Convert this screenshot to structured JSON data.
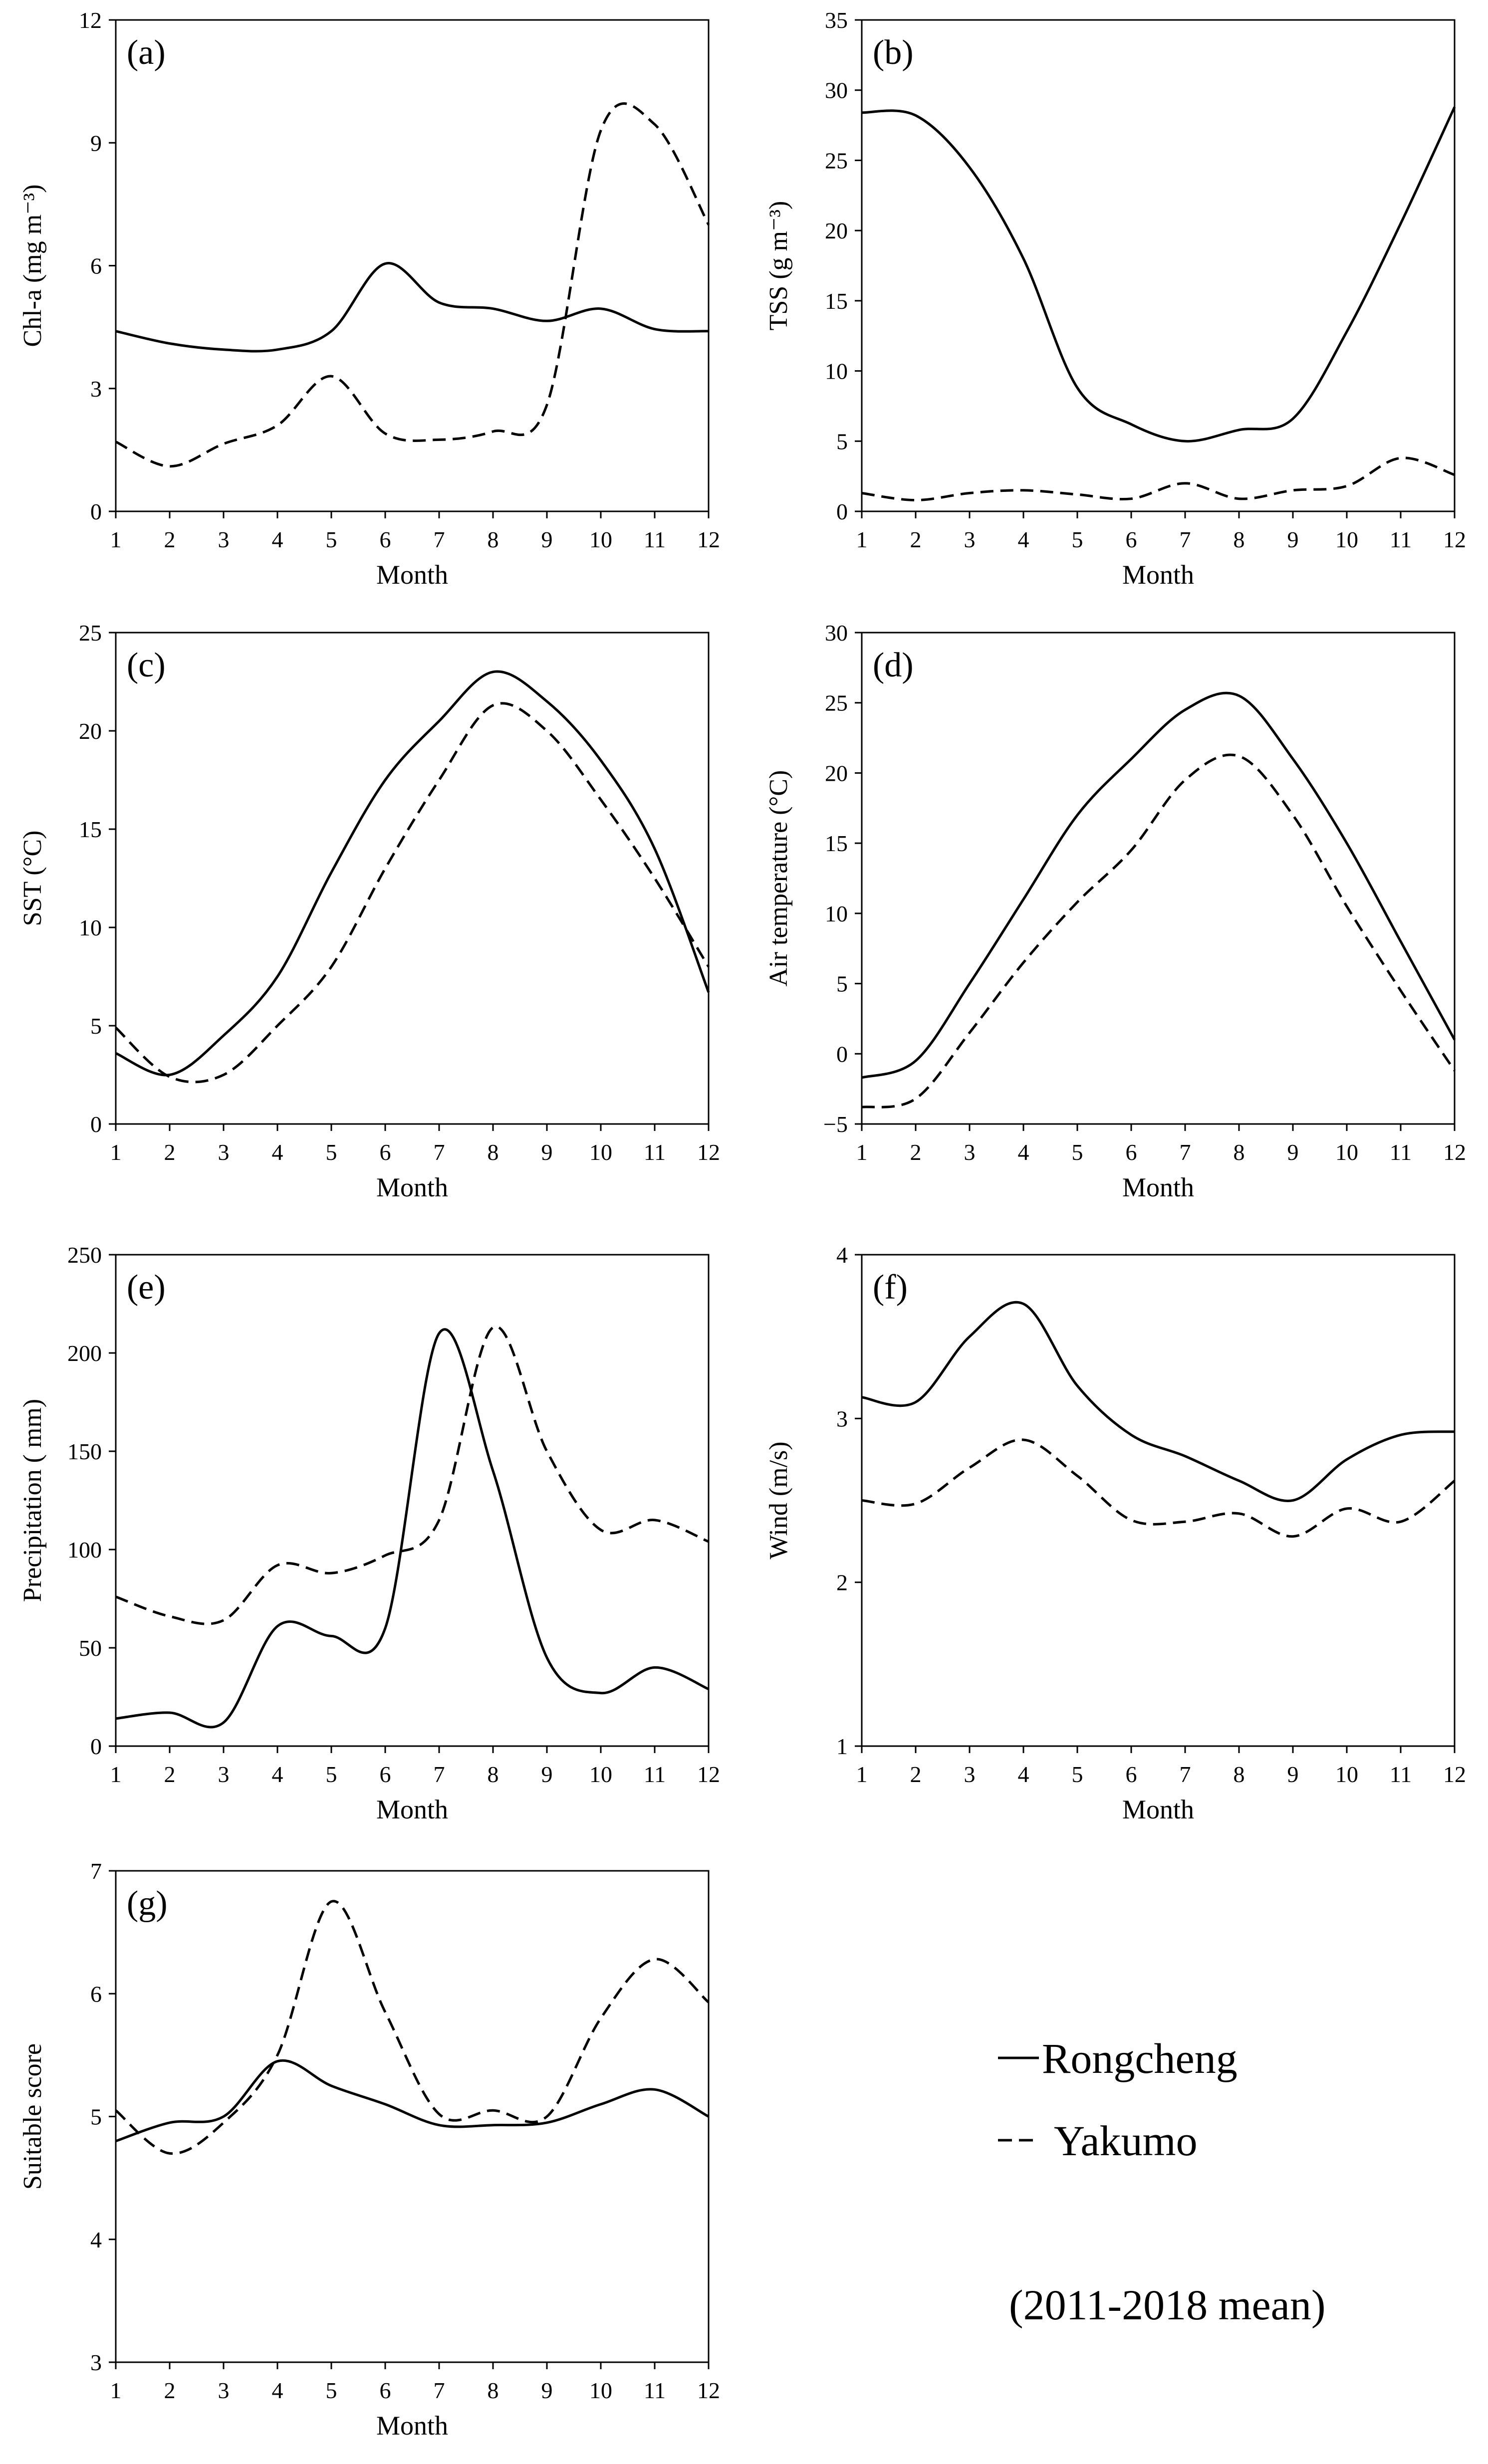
{
  "figure": {
    "legend": {
      "solid": "Rongcheng",
      "dashed": "Yakumo"
    },
    "note": "(2011-2018 mean)"
  },
  "chart_data": [
    {
      "panel": "(a)",
      "type": "line",
      "xlabel": "Month",
      "ylabel": "Chl-a (mg m⁻³)",
      "x": [
        1,
        2,
        3,
        4,
        5,
        6,
        7,
        8,
        9,
        10,
        11,
        12
      ],
      "ylim": [
        0,
        12
      ],
      "yticks": [
        0,
        3,
        6,
        9,
        12
      ],
      "series": [
        {
          "name": "Rongcheng",
          "style": "solid",
          "values": [
            4.4,
            4.1,
            3.95,
            3.95,
            4.4,
            6.05,
            5.1,
            4.95,
            4.65,
            4.95,
            4.45,
            4.4
          ]
        },
        {
          "name": "Yakumo",
          "style": "dashed",
          "values": [
            1.7,
            1.1,
            1.65,
            2.1,
            3.3,
            1.9,
            1.75,
            1.95,
            2.6,
            9.3,
            9.45,
            7.0
          ]
        }
      ]
    },
    {
      "panel": "(b)",
      "type": "line",
      "xlabel": "Month",
      "ylabel": "TSS (g m⁻³)",
      "x": [
        1,
        2,
        3,
        4,
        5,
        6,
        7,
        8,
        9,
        10,
        11,
        12
      ],
      "ylim": [
        0,
        35
      ],
      "yticks": [
        0,
        5,
        10,
        15,
        20,
        25,
        30,
        35
      ],
      "series": [
        {
          "name": "Rongcheng",
          "style": "solid",
          "values": [
            28.4,
            28.2,
            24.5,
            18.0,
            8.8,
            6.2,
            5.0,
            5.8,
            6.6,
            12.8,
            20.5,
            28.8
          ]
        },
        {
          "name": "Yakumo",
          "style": "dashed",
          "values": [
            1.3,
            0.8,
            1.3,
            1.5,
            1.2,
            0.9,
            2.0,
            0.9,
            1.5,
            1.8,
            3.8,
            2.6
          ]
        }
      ]
    },
    {
      "panel": "(c)",
      "type": "line",
      "xlabel": "Month",
      "ylabel": "SST (°C)",
      "x": [
        1,
        2,
        3,
        4,
        5,
        6,
        7,
        8,
        9,
        10,
        11,
        12
      ],
      "ylim": [
        0,
        25
      ],
      "yticks": [
        0,
        5,
        10,
        15,
        20,
        25
      ],
      "series": [
        {
          "name": "Rongcheng",
          "style": "solid",
          "values": [
            3.6,
            2.5,
            4.5,
            7.5,
            12.8,
            17.5,
            20.5,
            23.0,
            21.5,
            18.5,
            14.0,
            6.7
          ]
        },
        {
          "name": "Yakumo",
          "style": "dashed",
          "values": [
            4.9,
            2.4,
            2.5,
            5.0,
            8.0,
            13.0,
            17.5,
            21.3,
            20.0,
            16.5,
            12.5,
            8.0
          ]
        }
      ]
    },
    {
      "panel": "(d)",
      "type": "line",
      "xlabel": "Month",
      "ylabel": "Air temperature (°C)",
      "x": [
        1,
        2,
        3,
        4,
        5,
        6,
        7,
        8,
        9,
        10,
        11,
        12
      ],
      "ylim": [
        -5,
        30
      ],
      "yticks": [
        -5,
        0,
        5,
        10,
        15,
        20,
        25,
        30
      ],
      "series": [
        {
          "name": "Rongcheng",
          "style": "solid",
          "values": [
            -1.7,
            -0.5,
            5.0,
            11.0,
            17.0,
            21.0,
            24.5,
            25.5,
            21.0,
            15.0,
            8.0,
            1.0
          ]
        },
        {
          "name": "Yakumo",
          "style": "dashed",
          "values": [
            -3.8,
            -3.2,
            1.5,
            6.5,
            10.8,
            14.5,
            19.5,
            21.2,
            17.0,
            10.5,
            4.5,
            -1.2
          ]
        }
      ]
    },
    {
      "panel": "(e)",
      "type": "line",
      "xlabel": "Month",
      "ylabel": "Precipitation ( mm)",
      "x": [
        1,
        2,
        3,
        4,
        5,
        6,
        7,
        8,
        9,
        10,
        11,
        12
      ],
      "ylim": [
        0,
        250
      ],
      "yticks": [
        0,
        50,
        100,
        150,
        200,
        250
      ],
      "series": [
        {
          "name": "Rongcheng",
          "style": "solid",
          "values": [
            14,
            17,
            12,
            61,
            56,
            60,
            210,
            140,
            45,
            27,
            40,
            29
          ]
        },
        {
          "name": "Yakumo",
          "style": "dashed",
          "values": [
            76,
            66,
            64,
            92,
            88,
            97,
            115,
            213,
            150,
            110,
            115,
            104
          ]
        }
      ]
    },
    {
      "panel": "(f)",
      "type": "line",
      "xlabel": "Month",
      "ylabel": "Wind (m/s)",
      "x": [
        1,
        2,
        3,
        4,
        5,
        6,
        7,
        8,
        9,
        10,
        11,
        12
      ],
      "ylim": [
        1,
        4
      ],
      "yticks": [
        1,
        2,
        3,
        4
      ],
      "series": [
        {
          "name": "Rongcheng",
          "style": "solid",
          "values": [
            3.13,
            3.1,
            3.5,
            3.7,
            3.2,
            2.9,
            2.77,
            2.62,
            2.5,
            2.75,
            2.9,
            2.92
          ]
        },
        {
          "name": "Yakumo",
          "style": "dashed",
          "values": [
            2.5,
            2.48,
            2.7,
            2.87,
            2.65,
            2.38,
            2.37,
            2.42,
            2.28,
            2.45,
            2.37,
            2.62
          ]
        }
      ]
    },
    {
      "panel": "(g)",
      "type": "line",
      "xlabel": "Month",
      "ylabel": "Suitable score",
      "x": [
        1,
        2,
        3,
        4,
        5,
        6,
        7,
        8,
        9,
        10,
        11,
        12
      ],
      "ylim": [
        3,
        7
      ],
      "yticks": [
        3,
        4,
        5,
        6,
        7
      ],
      "series": [
        {
          "name": "Rongcheng",
          "style": "solid",
          "values": [
            4.8,
            4.95,
            5.0,
            5.45,
            5.25,
            5.1,
            4.93,
            4.93,
            4.95,
            5.1,
            5.22,
            5.0
          ]
        },
        {
          "name": "Yakumo",
          "style": "dashed",
          "values": [
            5.05,
            4.7,
            4.95,
            5.5,
            6.75,
            5.85,
            5.02,
            5.05,
            5.0,
            5.8,
            6.28,
            5.93
          ]
        }
      ]
    }
  ]
}
